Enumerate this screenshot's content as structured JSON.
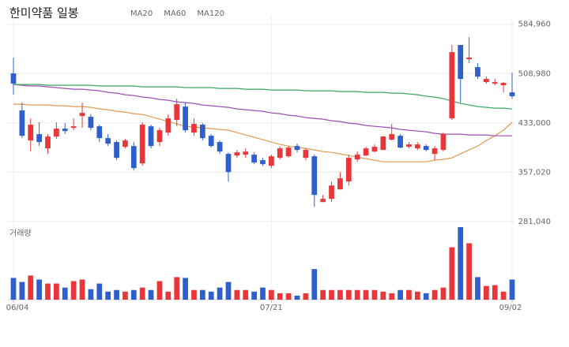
{
  "chart_data": {
    "type": "candlestick",
    "title": "한미약품 일봉",
    "categories": [
      "06/04",
      null,
      null,
      null,
      null,
      null,
      null,
      null,
      null,
      null,
      null,
      null,
      null,
      null,
      null,
      null,
      null,
      null,
      null,
      null,
      null,
      null,
      null,
      null,
      null,
      null,
      null,
      null,
      null,
      null,
      "07/21",
      null,
      null,
      null,
      null,
      null,
      null,
      null,
      null,
      null,
      null,
      null,
      null,
      null,
      null,
      null,
      null,
      null,
      null,
      null,
      null,
      null,
      null,
      null,
      null,
      null,
      null,
      null,
      "09/02"
    ],
    "up_color": "#e8363a",
    "down_color": "#2f5fcc",
    "open": [
      509200,
      452100,
      405900,
      415600,
      393700,
      411900,
      424100,
      425300,
      443600,
      442300,
      427700,
      409500,
      403400,
      396100,
      397300,
      370600,
      427700,
      403400,
      418000,
      437500,
      458100,
      418000,
      430200,
      413100,
      403400,
      385200,
      382700,
      384000,
      384000,
      375500,
      366900,
      379100,
      381500,
      397300,
      379100,
      381500,
      311000,
      315900,
      330500,
      342600,
      376700,
      382700,
      388800,
      391300,
      407100,
      413100,
      396100,
      393700,
      397300,
      385200,
      391300,
      439900,
      553000,
      531100,
      518900,
      495800,
      493400,
      491000,
      480000
    ],
    "high": [
      533500,
      464200,
      439900,
      433800,
      415600,
      433800,
      432600,
      439900,
      464200,
      446000,
      430200,
      415600,
      405900,
      408300,
      403400,
      433800,
      430200,
      425300,
      446000,
      470300,
      464200,
      439900,
      432600,
      415600,
      405900,
      387600,
      391300,
      393700,
      387600,
      379100,
      384000,
      396100,
      397300,
      401000,
      393700,
      384000,
      321900,
      342600,
      357200,
      384000,
      388800,
      396100,
      399800,
      413100,
      431400,
      415600,
      403400,
      403400,
      399800,
      397300,
      418000,
      553000,
      553000,
      565100,
      525000,
      504300,
      500700,
      495800,
      510400
    ],
    "low": [
      476400,
      409500,
      388800,
      397300,
      385200,
      408300,
      415600,
      421700,
      425300,
      421700,
      403400,
      397300,
      375500,
      393700,
      359600,
      366900,
      393700,
      397300,
      413100,
      427700,
      418000,
      413100,
      405900,
      394900,
      385200,
      342600,
      379100,
      379100,
      369400,
      366900,
      363300,
      376700,
      379100,
      387600,
      375500,
      303700,
      311000,
      311000,
      330500,
      336500,
      373000,
      381500,
      387600,
      391300,
      405900,
      393700,
      393700,
      391300,
      388800,
      375500,
      388800,
      437500,
      464200,
      525000,
      500700,
      493400,
      491000,
      480000,
      470300
    ],
    "close": [
      493400,
      413100,
      430200,
      403400,
      411900,
      424100,
      420400,
      427700,
      448400,
      425300,
      409500,
      401000,
      379100,
      405900,
      363300,
      430200,
      397300,
      421700,
      439900,
      461800,
      421700,
      431400,
      409500,
      397300,
      388800,
      357200,
      387600,
      388800,
      371800,
      369400,
      381500,
      393700,
      394900,
      391300,
      391300,
      321900,
      315900,
      336500,
      347500,
      379100,
      384000,
      393700,
      396100,
      411900,
      415600,
      394900,
      399800,
      399800,
      391300,
      393700,
      415600,
      542000,
      500700,
      533500,
      504300,
      500700,
      495800,
      494600,
      474000
    ],
    "series": [
      {
        "name": "MA20",
        "color": "#e39a4f",
        "values": [
          461800,
          461800,
          460600,
          460600,
          460600,
          459400,
          459400,
          458100,
          458100,
          456900,
          454500,
          453300,
          450800,
          449600,
          447200,
          446000,
          442300,
          438700,
          435000,
          431400,
          427700,
          426500,
          425300,
          424100,
          422900,
          421700,
          418000,
          414400,
          410700,
          407100,
          403400,
          399800,
          397300,
          394900,
          393700,
          391300,
          388800,
          387600,
          385200,
          382700,
          380300,
          377900,
          375500,
          373000,
          373000,
          373000,
          373000,
          373000,
          373000,
          375500,
          376700,
          379100,
          385200,
          391300,
          397300,
          405900,
          413100,
          421700,
          433800
        ]
      },
      {
        "name": "MA60",
        "color": "#9b4fb3",
        "values": [
          492200,
          491000,
          489800,
          489800,
          488500,
          487300,
          486100,
          484900,
          484900,
          483700,
          482500,
          480000,
          478800,
          476400,
          475200,
          472700,
          471500,
          469100,
          467900,
          465400,
          464200,
          463000,
          460600,
          459400,
          458100,
          456900,
          454500,
          453300,
          452100,
          450800,
          448400,
          447200,
          444800,
          443600,
          441100,
          439900,
          438700,
          436300,
          435000,
          432600,
          431400,
          429000,
          427700,
          426500,
          425300,
          422900,
          421700,
          420400,
          419200,
          416800,
          415600,
          415600,
          415600,
          414400,
          414400,
          414400,
          413100,
          413100,
          413100
        ]
      },
      {
        "name": "MA120",
        "color": "#3aa860",
        "values": [
          492200,
          492200,
          492200,
          492200,
          491000,
          491000,
          491000,
          491000,
          491000,
          491000,
          489800,
          489800,
          489800,
          489800,
          489800,
          488500,
          488500,
          488500,
          488500,
          488500,
          487300,
          487300,
          487300,
          487300,
          486100,
          486100,
          486100,
          484900,
          484900,
          484900,
          483700,
          483700,
          483700,
          483700,
          482500,
          482500,
          482500,
          482500,
          481200,
          481200,
          481200,
          480000,
          480000,
          480000,
          478800,
          478800,
          477600,
          476400,
          474000,
          472700,
          470300,
          466700,
          463000,
          460600,
          458100,
          456900,
          455700,
          455700,
          454500
        ]
      }
    ],
    "volume": {
      "label": "거래량",
      "values": [
        27,
        22,
        30,
        25,
        20,
        20,
        15,
        23,
        25,
        13,
        20,
        10,
        12,
        10,
        12,
        15,
        12,
        23,
        10,
        28,
        27,
        12,
        12,
        10,
        15,
        22,
        12,
        12,
        10,
        15,
        12,
        8,
        8,
        5,
        8,
        38,
        12,
        12,
        12,
        12,
        12,
        12,
        12,
        10,
        8,
        12,
        12,
        10,
        8,
        12,
        15,
        65,
        90,
        70,
        28,
        17,
        18,
        10,
        25
      ]
    },
    "ylim": [
      276000,
      598000
    ],
    "yticks": [
      {
        "value": 584960,
        "label": "584,960"
      },
      {
        "value": 508980,
        "label": "508,980"
      },
      {
        "value": 433000,
        "label": "433,000"
      },
      {
        "value": 357020,
        "label": "357,020"
      },
      {
        "value": 281040,
        "label": "281,040"
      }
    ],
    "grid": true
  }
}
